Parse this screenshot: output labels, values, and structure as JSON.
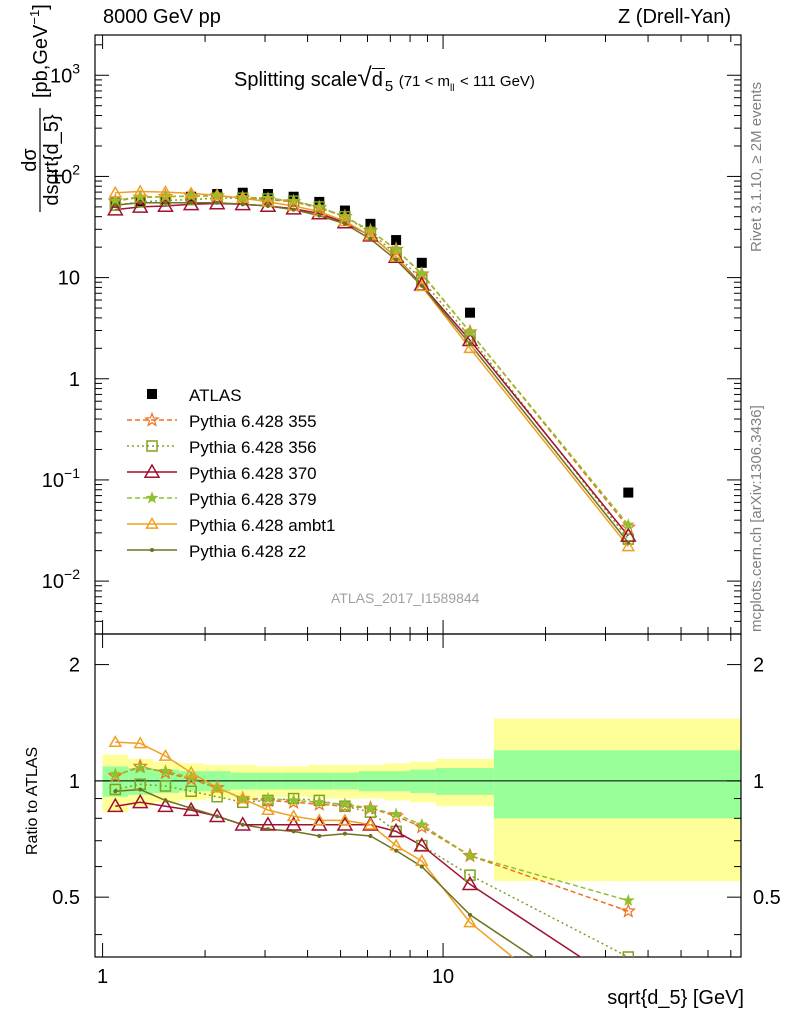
{
  "header": {
    "left": "8000 GeV pp",
    "right": "Z (Drell-Yan)"
  },
  "title": {
    "main": "Splitting scale",
    "symbol": "d",
    "symbol_sub": "5",
    "range_text": "(71 < m",
    "range_sub": "ll",
    "range_end": "< 111 GeV)"
  },
  "analysis_id": "ATLAS_2017_I1589844",
  "side_text": {
    "rivet": "Rivet 3.1.10, ≥ 2M events",
    "mcplots": "mcplots.cern.ch [arXiv:1306.3436]"
  },
  "axes": {
    "xlabel": "sqrt{d_5} [GeV]",
    "ylabel_top": "dσ",
    "ylabel_bottom": "dsqrt{d_5}",
    "ylabel_unit": "[pb,GeV",
    "ylabel_unit_exp": "-1",
    "ylabel_unit_close": "]",
    "ratio_ylabel": "Ratio to ATLAS",
    "x_ticks": [
      "1",
      "10"
    ],
    "y_ticks_main": [
      "10^3",
      "10^2",
      "10",
      "1",
      "10^-1",
      "10^-2"
    ],
    "y_ticks_ratio": [
      "2",
      "1",
      "0.5"
    ]
  },
  "colors": {
    "data": "#000000",
    "band_inner": "#99ff99",
    "band_outer": "#ffff99",
    "s355": "#f07020",
    "s356": "#80a020",
    "s370": "#a01030",
    "s379": "#90c030",
    "ambt1": "#f0a020",
    "z2": "#707020"
  },
  "chart_data": {
    "type": "line",
    "xscale": "log",
    "yscale": "log",
    "xlim": [
      0.95,
      75
    ],
    "ylim": [
      0.003,
      2500
    ],
    "ratio_ylim": [
      0.35,
      2.4
    ],
    "ratio_scale": "log",
    "legend_position": "left-middle",
    "x": [
      1.09,
      1.29,
      1.53,
      1.82,
      2.17,
      2.58,
      3.06,
      3.64,
      4.33,
      5.15,
      6.12,
      7.28,
      8.66,
      12.0,
      35.0
    ],
    "bins": [
      1.0,
      1.19,
      1.41,
      1.68,
      2.0,
      2.38,
      2.83,
      3.36,
      4.0,
      4.76,
      5.66,
      6.73,
      8.0,
      9.51,
      14.1,
      75.0
    ],
    "band_inner": [
      0.09,
      0.08,
      0.07,
      0.06,
      0.06,
      0.05,
      0.05,
      0.05,
      0.05,
      0.05,
      0.06,
      0.06,
      0.07,
      0.08,
      0.2
    ],
    "band_outer": [
      0.17,
      0.14,
      0.12,
      0.11,
      0.1,
      0.1,
      0.09,
      0.09,
      0.1,
      0.1,
      0.1,
      0.11,
      0.12,
      0.14,
      0.45
    ],
    "series": [
      {
        "name": "ATLAS",
        "key": "data",
        "values": [
          55,
          57,
          60,
          63,
          67,
          69,
          67,
          63,
          56,
          46,
          34,
          23.5,
          14,
          4.5,
          0.075
        ]
      },
      {
        "name": "Pythia 6.428 355",
        "key": "s355",
        "values": [
          57,
          62,
          63,
          64,
          64,
          61,
          59,
          56,
          49,
          40,
          29,
          19,
          10.8,
          2.9,
          0.034
        ],
        "ratio": [
          1.03,
          1.09,
          1.05,
          1.01,
          0.96,
          0.9,
          0.89,
          0.88,
          0.87,
          0.86,
          0.85,
          0.81,
          0.76,
          0.64,
          0.46
        ]
      },
      {
        "name": "Pythia 6.428 356",
        "key": "s356",
        "values": [
          52,
          56,
          58,
          59,
          61,
          61,
          60,
          57,
          50,
          40,
          28,
          17,
          9.5,
          2.6,
          0.026
        ],
        "ratio": [
          0.95,
          0.98,
          0.97,
          0.94,
          0.91,
          0.88,
          0.89,
          0.9,
          0.89,
          0.86,
          0.83,
          0.74,
          0.68,
          0.57,
          0.35
        ]
      },
      {
        "name": "Pythia 6.428 370",
        "key": "s370",
        "values": [
          47,
          50,
          51,
          53,
          54,
          53,
          51,
          48,
          43,
          35,
          26,
          16,
          8.5,
          2.4,
          0.028
        ],
        "ratio": [
          0.86,
          0.88,
          0.86,
          0.84,
          0.81,
          0.77,
          0.77,
          0.77,
          0.77,
          0.77,
          0.77,
          0.74,
          0.68,
          0.54,
          0.29
        ]
      },
      {
        "name": "Pythia 6.428 379",
        "key": "s379",
        "values": [
          58,
          63,
          63,
          64,
          64,
          62,
          61,
          57,
          50,
          40,
          29,
          19,
          11,
          2.9,
          0.036
        ],
        "ratio": [
          1.04,
          1.08,
          1.06,
          1.02,
          0.96,
          0.9,
          0.9,
          0.89,
          0.88,
          0.87,
          0.85,
          0.82,
          0.77,
          0.64,
          0.49
        ]
      },
      {
        "name": "Pythia 6.428 ambt1",
        "key": "ambt1",
        "values": [
          69,
          71,
          70,
          68,
          65,
          61,
          56,
          51,
          45,
          36,
          26,
          16,
          8.2,
          2.0,
          0.022
        ],
        "ratio": [
          1.26,
          1.25,
          1.16,
          1.05,
          0.96,
          0.9,
          0.84,
          0.81,
          0.79,
          0.79,
          0.77,
          0.68,
          0.62,
          0.43,
          0.2
        ]
      },
      {
        "name": "Pythia 6.428 z2",
        "key": "z2",
        "values": [
          52,
          55,
          55,
          55,
          55,
          53,
          51,
          47,
          41,
          34,
          24,
          15,
          8.3,
          2.2,
          0.024
        ],
        "ratio": [
          0.94,
          0.95,
          0.89,
          0.85,
          0.81,
          0.77,
          0.75,
          0.74,
          0.72,
          0.73,
          0.72,
          0.66,
          0.6,
          0.45,
          0.24
        ]
      }
    ]
  }
}
